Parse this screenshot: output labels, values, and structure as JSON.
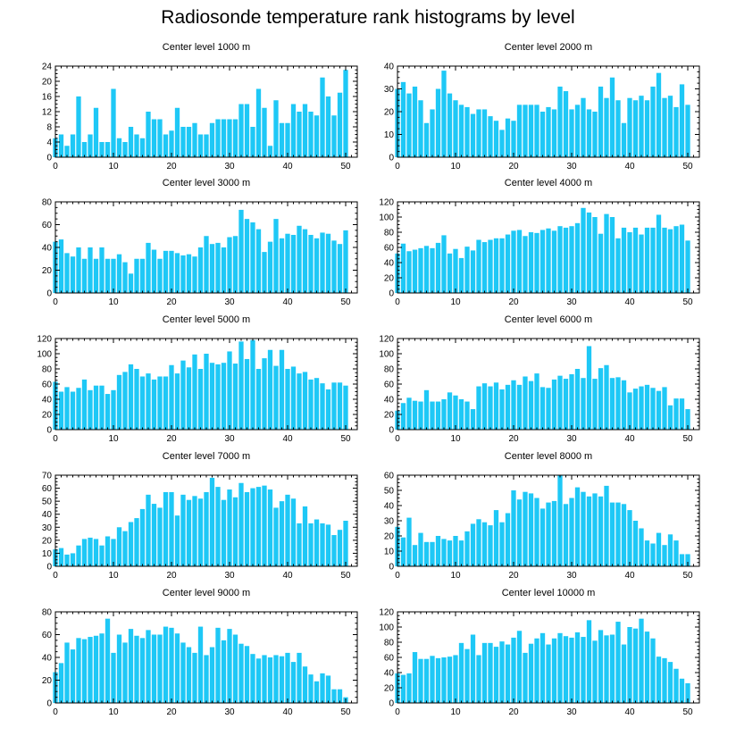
{
  "figure": {
    "title": "Radiosonde temperature rank histograms by level",
    "bar_color": "#1ec8f6"
  },
  "chart_data": [
    {
      "type": "bar",
      "title": "Center level 1000 m",
      "xlabel": "",
      "ylabel": "",
      "xlim": [
        0,
        52
      ],
      "ylim": [
        0,
        24
      ],
      "xticks": [
        0,
        10,
        20,
        30,
        40,
        50
      ],
      "yticks": [
        0,
        4,
        8,
        12,
        16,
        20,
        24
      ],
      "values": [
        5,
        6,
        3,
        6,
        16,
        4,
        6,
        13,
        4,
        4,
        18,
        5,
        4,
        8,
        6,
        5,
        12,
        10,
        10,
        6,
        7,
        13,
        8,
        8,
        9,
        6,
        6,
        9,
        10,
        10,
        10,
        10,
        14,
        14,
        8,
        18,
        13,
        3,
        15,
        9,
        9,
        14,
        12,
        14,
        12,
        11,
        21,
        16,
        11,
        17,
        23
      ]
    },
    {
      "type": "bar",
      "title": "Center level 2000 m",
      "xlabel": "",
      "ylabel": "",
      "xlim": [
        0,
        52
      ],
      "ylim": [
        0,
        40
      ],
      "xticks": [
        0,
        10,
        20,
        30,
        40,
        50
      ],
      "yticks": [
        0,
        10,
        20,
        30,
        40
      ],
      "values": [
        30,
        33,
        28,
        31,
        25,
        15,
        21,
        30,
        38,
        28,
        25,
        23,
        22,
        19,
        21,
        21,
        18,
        16,
        12,
        17,
        16,
        23,
        23,
        23,
        23,
        20,
        22,
        21,
        31,
        29,
        21,
        23,
        26,
        21,
        20,
        31,
        26,
        35,
        25,
        15,
        26,
        25,
        27,
        25,
        31,
        37,
        26,
        27,
        22,
        32,
        23
      ]
    },
    {
      "type": "bar",
      "title": "Center level 3000 m",
      "xlabel": "",
      "ylabel": "",
      "xlim": [
        0,
        52
      ],
      "ylim": [
        0,
        80
      ],
      "xticks": [
        0,
        10,
        20,
        30,
        40,
        50
      ],
      "yticks": [
        0,
        20,
        40,
        60,
        80
      ],
      "values": [
        45,
        47,
        35,
        32,
        40,
        30,
        40,
        30,
        40,
        30,
        30,
        34,
        27,
        17,
        30,
        30,
        44,
        38,
        30,
        37,
        37,
        35,
        33,
        34,
        32,
        40,
        50,
        43,
        44,
        40,
        49,
        50,
        73,
        65,
        62,
        56,
        36,
        45,
        65,
        48,
        52,
        51,
        59,
        56,
        51,
        48,
        53,
        52,
        46,
        43,
        55
      ]
    },
    {
      "type": "bar",
      "title": "Center level 4000 m",
      "xlabel": "",
      "ylabel": "",
      "xlim": [
        0,
        52
      ],
      "ylim": [
        0,
        120
      ],
      "xticks": [
        0,
        10,
        20,
        30,
        40,
        50
      ],
      "yticks": [
        0,
        20,
        40,
        60,
        80,
        100,
        120
      ],
      "values": [
        52,
        65,
        55,
        57,
        59,
        62,
        59,
        66,
        76,
        52,
        58,
        46,
        61,
        56,
        70,
        67,
        70,
        72,
        72,
        77,
        82,
        83,
        75,
        80,
        79,
        83,
        85,
        82,
        88,
        86,
        88,
        92,
        112,
        106,
        100,
        78,
        104,
        100,
        72,
        86,
        80,
        86,
        77,
        86,
        86,
        103,
        86,
        84,
        88,
        90,
        69
      ]
    },
    {
      "type": "bar",
      "title": "Center level 5000 m",
      "xlabel": "",
      "ylabel": "",
      "xlim": [
        0,
        52
      ],
      "ylim": [
        0,
        120
      ],
      "xticks": [
        0,
        10,
        20,
        30,
        40,
        50
      ],
      "yticks": [
        0,
        20,
        40,
        60,
        80,
        100,
        120
      ],
      "values": [
        63,
        50,
        56,
        50,
        55,
        66,
        52,
        58,
        58,
        47,
        52,
        72,
        76,
        86,
        80,
        70,
        74,
        66,
        70,
        70,
        85,
        74,
        91,
        82,
        99,
        80,
        100,
        88,
        86,
        88,
        103,
        87,
        116,
        93,
        118,
        80,
        94,
        105,
        84,
        105,
        80,
        83,
        74,
        76,
        66,
        68,
        61,
        53,
        62,
        62,
        58
      ]
    },
    {
      "type": "bar",
      "title": "Center level 6000 m",
      "xlabel": "",
      "ylabel": "",
      "xlim": [
        0,
        52
      ],
      "ylim": [
        0,
        120
      ],
      "xticks": [
        0,
        10,
        20,
        30,
        40,
        50
      ],
      "yticks": [
        0,
        20,
        40,
        60,
        80,
        100,
        120
      ],
      "values": [
        25,
        35,
        42,
        38,
        37,
        52,
        37,
        37,
        40,
        49,
        45,
        40,
        37,
        27,
        57,
        61,
        57,
        62,
        53,
        59,
        65,
        59,
        70,
        64,
        74,
        56,
        55,
        66,
        71,
        67,
        73,
        80,
        68,
        110,
        67,
        81,
        85,
        68,
        69,
        65,
        49,
        54,
        57,
        59,
        55,
        51,
        56,
        32,
        41,
        41,
        27
      ]
    },
    {
      "type": "bar",
      "title": "Center level 7000 m",
      "xlabel": "",
      "ylabel": "",
      "xlim": [
        0,
        52
      ],
      "ylim": [
        0,
        70
      ],
      "xticks": [
        0,
        10,
        20,
        30,
        40,
        50
      ],
      "yticks": [
        0,
        10,
        20,
        30,
        40,
        50,
        60,
        70
      ],
      "values": [
        13,
        14,
        9,
        10,
        16,
        21,
        22,
        21,
        16,
        23,
        21,
        30,
        27,
        34,
        37,
        44,
        55,
        48,
        45,
        57,
        57,
        39,
        55,
        51,
        54,
        52,
        57,
        68,
        61,
        51,
        59,
        53,
        64,
        57,
        60,
        61,
        62,
        59,
        45,
        50,
        55,
        52,
        33,
        46,
        33,
        36,
        33,
        32,
        24,
        28,
        35
      ]
    },
    {
      "type": "bar",
      "title": "Center level 8000 m",
      "xlabel": "",
      "ylabel": "",
      "xlim": [
        0,
        52
      ],
      "ylim": [
        0,
        60
      ],
      "xticks": [
        0,
        10,
        20,
        30,
        40,
        50
      ],
      "yticks": [
        0,
        10,
        20,
        30,
        40,
        50,
        60
      ],
      "values": [
        26,
        19,
        32,
        14,
        22,
        16,
        16,
        20,
        18,
        17,
        20,
        17,
        23,
        28,
        31,
        29,
        27,
        37,
        29,
        35,
        50,
        44,
        49,
        48,
        45,
        38,
        42,
        43,
        60,
        41,
        45,
        52,
        49,
        46,
        48,
        46,
        53,
        42,
        42,
        41,
        37,
        30,
        25,
        17,
        15,
        22,
        14,
        21,
        17,
        8,
        8
      ]
    },
    {
      "type": "bar",
      "title": "Center level 9000 m",
      "xlabel": "",
      "ylabel": "",
      "xlim": [
        0,
        52
      ],
      "ylim": [
        0,
        80
      ],
      "xticks": [
        0,
        10,
        20,
        30,
        40,
        50
      ],
      "yticks": [
        0,
        20,
        40,
        60,
        80
      ],
      "values": [
        27,
        35,
        53,
        47,
        57,
        56,
        58,
        59,
        61,
        74,
        44,
        60,
        53,
        65,
        59,
        57,
        64,
        60,
        60,
        67,
        66,
        61,
        53,
        49,
        44,
        67,
        42,
        49,
        66,
        55,
        65,
        60,
        52,
        50,
        43,
        39,
        42,
        40,
        42,
        41,
        44,
        36,
        44,
        32,
        25,
        19,
        26,
        24,
        12,
        12,
        5
      ]
    },
    {
      "type": "bar",
      "title": "Center level 10000 m",
      "xlabel": "",
      "ylabel": "",
      "xlim": [
        0,
        52
      ],
      "ylim": [
        0,
        120
      ],
      "xticks": [
        0,
        10,
        20,
        30,
        40,
        50
      ],
      "yticks": [
        0,
        20,
        40,
        60,
        80,
        100,
        120
      ],
      "values": [
        39,
        37,
        39,
        67,
        58,
        58,
        62,
        59,
        60,
        61,
        63,
        79,
        71,
        90,
        63,
        79,
        79,
        74,
        81,
        77,
        86,
        95,
        66,
        78,
        85,
        92,
        77,
        85,
        92,
        88,
        86,
        93,
        87,
        109,
        82,
        96,
        89,
        90,
        107,
        77,
        100,
        98,
        111,
        94,
        85,
        61,
        59,
        54,
        45,
        32,
        26
      ]
    }
  ]
}
